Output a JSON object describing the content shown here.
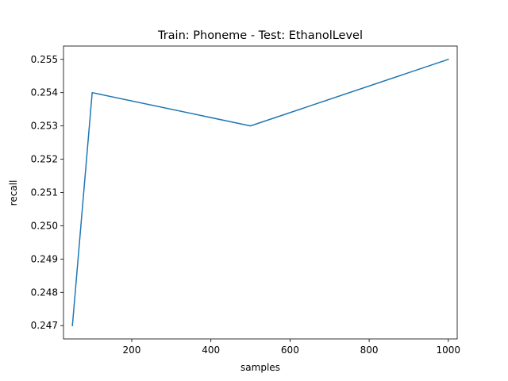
{
  "chart_data": {
    "type": "line",
    "title": "Train: Phoneme - Test: EthanolLevel",
    "xlabel": "samples",
    "ylabel": "recall",
    "xlim": [
      27.5,
      1022.5
    ],
    "ylim": [
      0.2466,
      0.2554
    ],
    "xticks": [
      200,
      400,
      600,
      800,
      1000
    ],
    "xtick_labels": [
      "200",
      "400",
      "600",
      "800",
      "1000"
    ],
    "yticks": [
      0.247,
      0.248,
      0.249,
      0.25,
      0.251,
      0.252,
      0.253,
      0.254,
      0.255
    ],
    "ytick_labels": [
      "0.247",
      "0.248",
      "0.249",
      "0.250",
      "0.251",
      "0.252",
      "0.253",
      "0.254",
      "0.255"
    ],
    "grid": false,
    "series": [
      {
        "color": "#1f77b4",
        "x": [
          50,
          100,
          500,
          1000
        ],
        "y": [
          0.247,
          0.254,
          0.253,
          0.255
        ]
      }
    ]
  }
}
